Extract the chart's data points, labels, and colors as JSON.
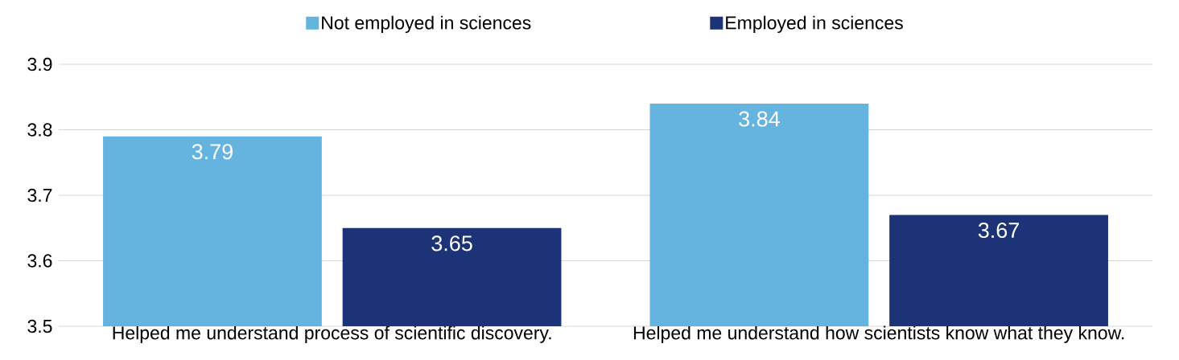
{
  "chart_data": {
    "type": "bar",
    "categories": [
      "Helped me understand process of scientific discovery.",
      "Helped me understand how scientists know what they know."
    ],
    "series": [
      {
        "name": "Not employed in sciences",
        "color": "#65b3df",
        "values": [
          3.79,
          3.84
        ]
      },
      {
        "name": "Employed in sciences",
        "color": "#1c3378",
        "values": [
          3.65,
          3.67
        ]
      }
    ],
    "ylim": [
      3.5,
      3.9
    ],
    "yticks": [
      3.5,
      3.6,
      3.7,
      3.8,
      3.9
    ],
    "grid": "y",
    "legend": "top",
    "data_labels": true
  }
}
